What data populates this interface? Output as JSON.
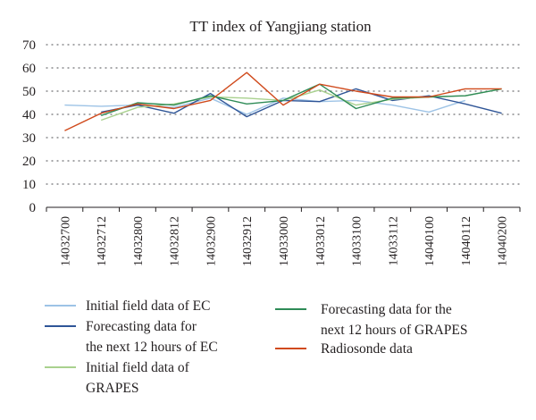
{
  "chart_data": {
    "type": "line",
    "title": "TT index of Yangjiang station",
    "xlabel": "",
    "ylabel": "",
    "ylim": [
      0,
      70
    ],
    "yticks": [
      0,
      10,
      20,
      30,
      40,
      50,
      60,
      70
    ],
    "grid": true,
    "legend_position": "bottom",
    "categories": [
      "14032700",
      "14032712",
      "14032800",
      "14032812",
      "14032900",
      "14032912",
      "14033000",
      "14033012",
      "14033100",
      "14033112",
      "14040100",
      "14040112",
      "14040200"
    ],
    "series": [
      {
        "name": "Initial field data of EC",
        "color": "#9dc3e6",
        "values": [
          44,
          43.5,
          44,
          43,
          47,
          40,
          47,
          45.5,
          46,
          44,
          41,
          46,
          null
        ]
      },
      {
        "name": "Forecasting data for the next 12 hours of EC",
        "color": "#2f5597",
        "values": [
          null,
          41,
          44,
          40.5,
          49,
          39,
          46,
          45.5,
          51,
          46,
          48,
          44.5,
          40.5
        ]
      },
      {
        "name": "Initial field data of GRAPES",
        "color": "#a9d18e",
        "values": [
          null,
          37.5,
          43,
          44.5,
          47.5,
          47,
          46,
          50.5,
          44,
          46.5,
          47.5,
          48,
          51
        ]
      },
      {
        "name": "Forecasting data for the next 12 hours of GRAPES",
        "color": "#2e8b57",
        "values": [
          null,
          39.5,
          45,
          44,
          48,
          44.5,
          46,
          53,
          42.5,
          47,
          47.5,
          48,
          51
        ]
      },
      {
        "name": "Radiosonde data",
        "color": "#d04a1c",
        "values": [
          33,
          40.5,
          44.5,
          42.5,
          46,
          58,
          44,
          53,
          50,
          47.5,
          47.5,
          51,
          51
        ]
      }
    ],
    "legend": {
      "left": [
        {
          "lines": [
            "Initial field data of EC"
          ],
          "color": "#9dc3e6"
        },
        {
          "lines": [
            "Forecasting data for",
            "the next 12 hours of EC"
          ],
          "color": "#2f5597"
        },
        {
          "lines": [
            "Initial field data of",
            "GRAPES"
          ],
          "color": "#a9d18e"
        }
      ],
      "right": [
        {
          "lines": [
            "Forecasting data for the",
            "next 12 hours of GRAPES"
          ],
          "color": "#2e8b57"
        },
        {
          "lines": [
            "Radiosonde data"
          ],
          "color": "#d04a1c"
        }
      ]
    }
  }
}
